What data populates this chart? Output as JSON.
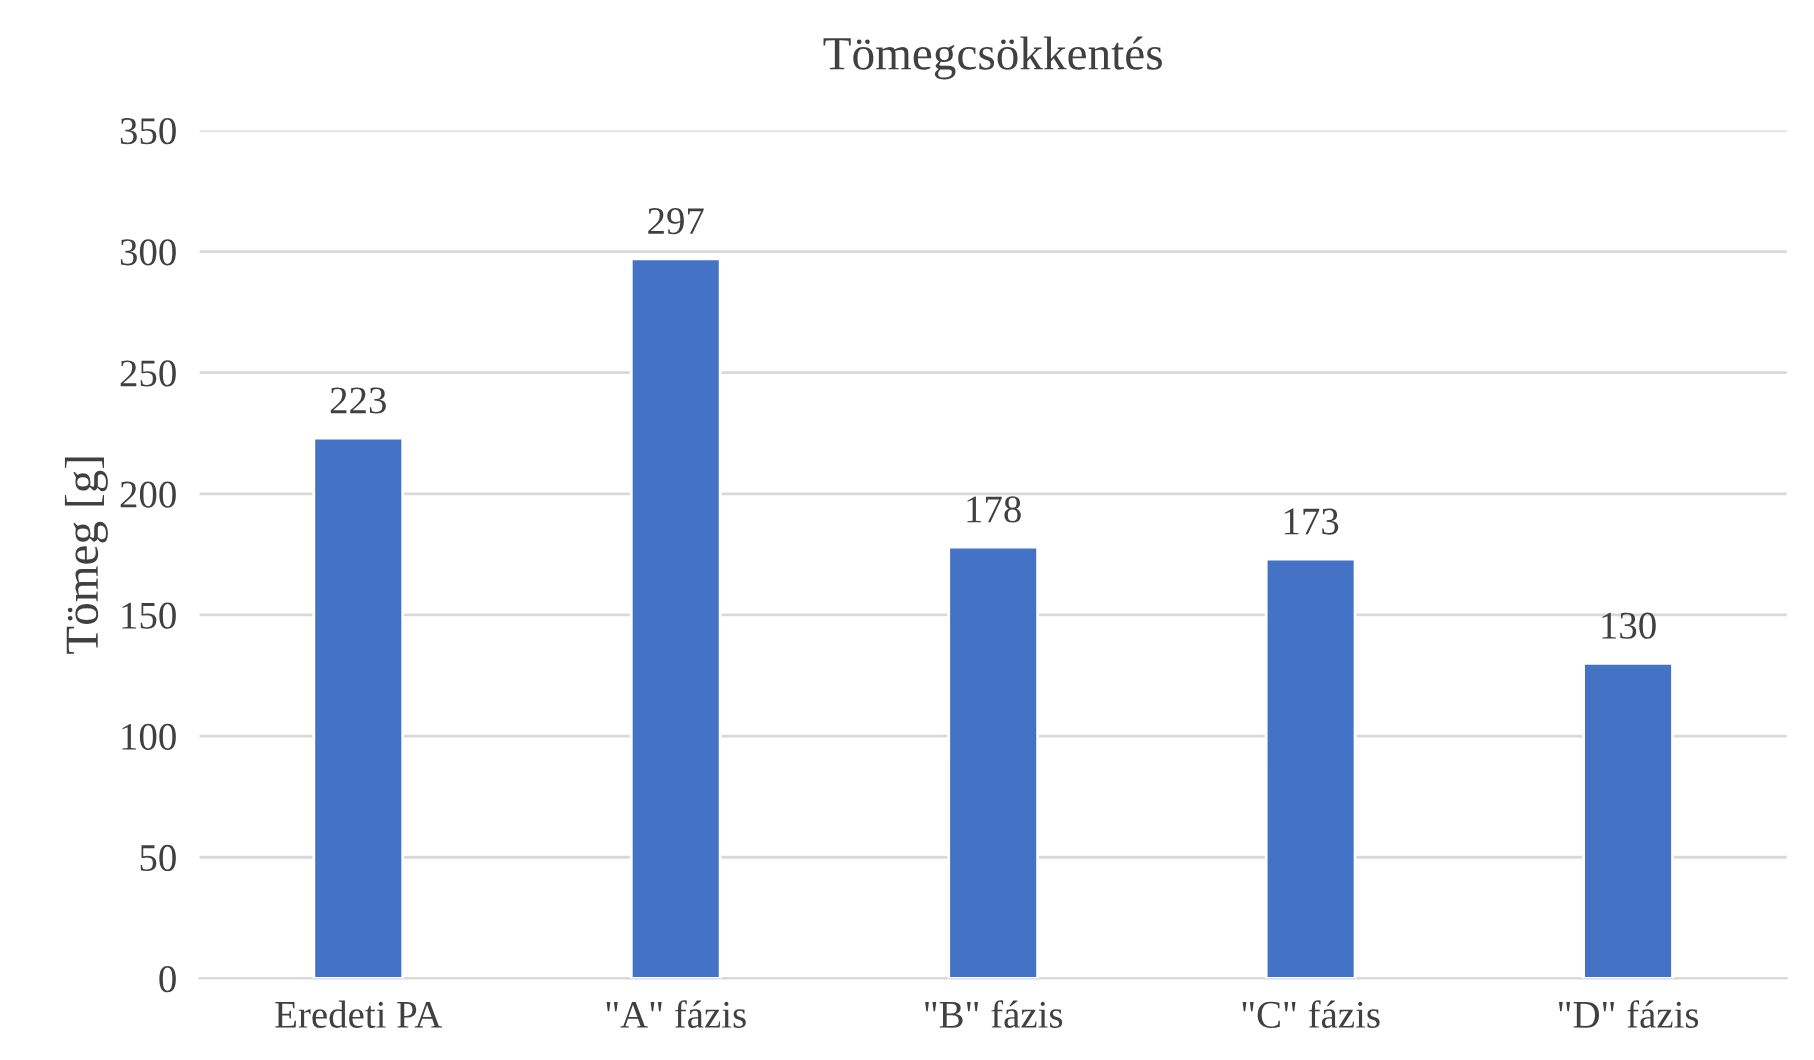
{
  "chart_data": {
    "type": "bar",
    "title": "Tömegcsökkentés",
    "ylabel": "Tömeg [g]",
    "categories": [
      "Eredeti PA",
      "\"A\" fázis",
      "\"B\" fázis",
      "\"C\" fázis",
      "\"D\" fázis"
    ],
    "values": [
      223,
      297,
      178,
      173,
      130
    ],
    "color": "#4472c4",
    "ylim": [
      0,
      350
    ],
    "yticks": [
      0,
      50,
      100,
      150,
      200,
      250,
      300,
      350
    ],
    "grid": "y",
    "data_labels": true,
    "legend": false
  }
}
